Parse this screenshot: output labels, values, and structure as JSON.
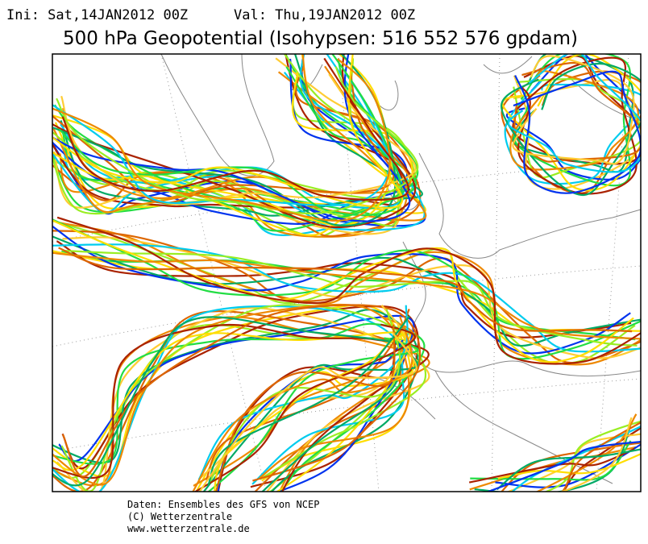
{
  "header": {
    "init": "Ini: Sat,14JAN2012 00Z",
    "valid": "Val: Thu,19JAN2012 00Z",
    "title": "500 hPa Geopotential (Isohypsen: 516 552 576 gpdam)"
  },
  "footer": [
    "Daten: Ensembles des GFS von NCEP",
    "(C) Wetterzentrale",
    "www.wetterzentrale.de"
  ]
}
